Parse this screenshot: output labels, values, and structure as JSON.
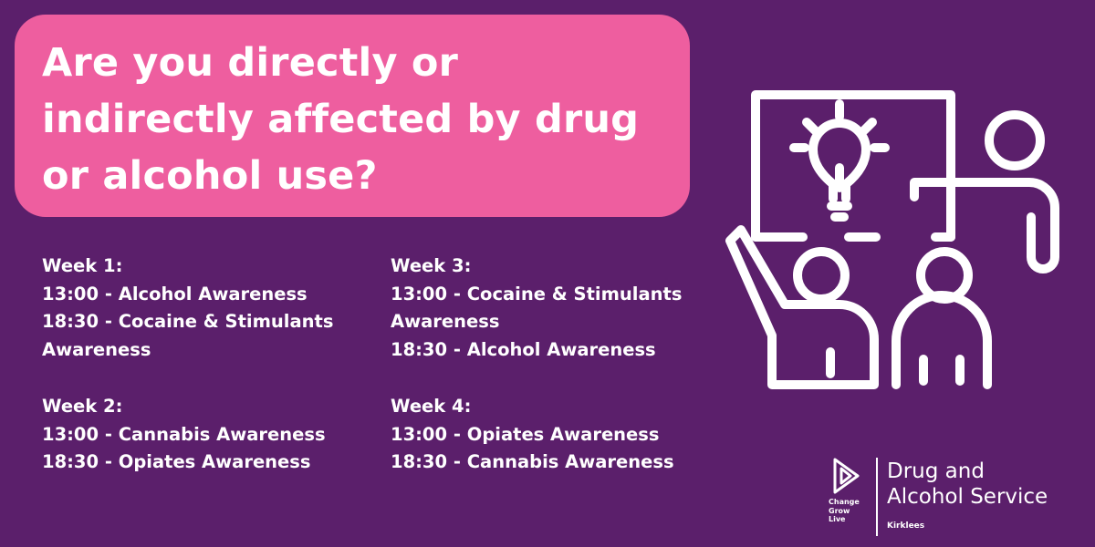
{
  "colors": {
    "background": "#5b1f6b",
    "headline_box": "#ee5e9f",
    "text": "#ffffff"
  },
  "headline": {
    "lines": [
      "Are you directly or",
      "indirectly affected by drug",
      "or alcohol use?"
    ]
  },
  "schedule": {
    "week1": {
      "title": "Week 1:",
      "sessions": [
        "13:00 - Alcohol Awareness",
        "18:30 - Cocaine & Stimulants Awareness"
      ]
    },
    "week2": {
      "title": "Week 2:",
      "sessions": [
        "13:00 - Cannabis Awareness",
        "18:30 - Opiates Awareness"
      ]
    },
    "week3": {
      "title": "Week 3:",
      "sessions": [
        "13:00 - Cocaine & Stimulants Awareness",
        "18:30 - Alcohol Awareness"
      ]
    },
    "week4": {
      "title": "Week 4:",
      "sessions": [
        "13:00 - Opiates Awareness",
        "18:30 - Cannabis Awareness"
      ]
    }
  },
  "illustration": {
    "icon": "presentation-lightbulb-icon"
  },
  "branding": {
    "logo_icon": "change-grow-live-logo-icon",
    "logo_lines": [
      "Change",
      "Grow",
      "Live"
    ],
    "service_lines": [
      "Drug and",
      "Alcohol Service"
    ],
    "area": "Kirklees"
  }
}
